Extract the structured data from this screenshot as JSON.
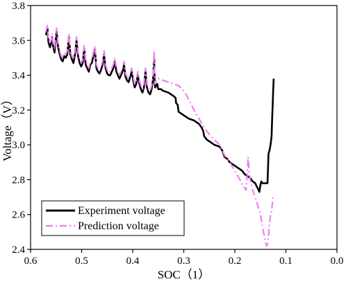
{
  "chart_data": {
    "type": "line",
    "xlabel": "SOC（1）",
    "ylabel": "Voltage（V）",
    "xlim": [
      0.6,
      0.0
    ],
    "ylim": [
      2.4,
      3.8
    ],
    "x_reversed": true,
    "x_ticks": [
      "0.6",
      "0.5",
      "0.4",
      "0.3",
      "0.2",
      "0.1",
      "0.0"
    ],
    "y_ticks": [
      "2.4",
      "2.6",
      "2.8",
      "3.0",
      "3.2",
      "3.4",
      "3.6",
      "3.8"
    ],
    "legend_position": "bottom-left",
    "series": [
      {
        "name": "Experiment voltage",
        "color": "#000000",
        "style": "solid",
        "x": [
          0.57,
          0.567,
          0.565,
          0.562,
          0.56,
          0.558,
          0.556,
          0.553,
          0.551,
          0.549,
          0.546,
          0.543,
          0.54,
          0.537,
          0.534,
          0.531,
          0.528,
          0.525,
          0.522,
          0.519,
          0.516,
          0.513,
          0.51,
          0.507,
          0.504,
          0.501,
          0.498,
          0.495,
          0.492,
          0.489,
          0.486,
          0.483,
          0.48,
          0.477,
          0.474,
          0.471,
          0.468,
          0.465,
          0.462,
          0.459,
          0.456,
          0.453,
          0.45,
          0.447,
          0.444,
          0.441,
          0.438,
          0.435,
          0.432,
          0.429,
          0.426,
          0.423,
          0.42,
          0.417,
          0.414,
          0.411,
          0.408,
          0.405,
          0.402,
          0.399,
          0.396,
          0.393,
          0.39,
          0.387,
          0.384,
          0.381,
          0.378,
          0.375,
          0.372,
          0.369,
          0.366,
          0.363,
          0.36,
          0.358,
          0.357,
          0.356,
          0.354,
          0.352,
          0.35,
          0.345,
          0.34,
          0.33,
          0.32,
          0.316,
          0.315,
          0.312,
          0.31,
          0.3,
          0.29,
          0.28,
          0.275,
          0.27,
          0.265,
          0.262,
          0.26,
          0.255,
          0.25,
          0.24,
          0.23,
          0.225,
          0.22,
          0.215,
          0.21,
          0.2,
          0.19,
          0.185,
          0.183,
          0.18,
          0.175,
          0.17,
          0.165,
          0.16,
          0.157,
          0.155,
          0.152,
          0.15,
          0.148,
          0.146,
          0.144,
          0.142,
          0.14,
          0.136,
          0.134,
          0.132,
          0.13,
          0.128,
          0.127,
          0.126,
          0.125,
          0.124
        ],
        "y": [
          3.63,
          3.67,
          3.59,
          3.56,
          3.58,
          3.62,
          3.57,
          3.53,
          3.6,
          3.65,
          3.56,
          3.52,
          3.49,
          3.48,
          3.51,
          3.5,
          3.52,
          3.62,
          3.52,
          3.49,
          3.47,
          3.52,
          3.6,
          3.51,
          3.47,
          3.45,
          3.47,
          3.55,
          3.46,
          3.44,
          3.42,
          3.46,
          3.47,
          3.51,
          3.55,
          3.44,
          3.42,
          3.41,
          3.43,
          3.46,
          3.52,
          3.44,
          3.41,
          3.4,
          3.4,
          3.42,
          3.44,
          3.48,
          3.42,
          3.4,
          3.38,
          3.4,
          3.42,
          3.46,
          3.39,
          3.37,
          3.36,
          3.39,
          3.42,
          3.37,
          3.33,
          3.35,
          3.4,
          3.35,
          3.32,
          3.3,
          3.33,
          3.42,
          3.33,
          3.3,
          3.29,
          3.32,
          3.38,
          3.5,
          3.36,
          3.33,
          3.34,
          3.35,
          3.32,
          3.32,
          3.31,
          3.3,
          3.28,
          3.27,
          3.24,
          3.23,
          3.19,
          3.17,
          3.15,
          3.14,
          3.13,
          3.12,
          3.1,
          3.08,
          3.05,
          3.03,
          3.02,
          3.0,
          2.99,
          2.97,
          2.93,
          2.92,
          2.9,
          2.88,
          2.86,
          2.85,
          2.84,
          2.83,
          2.82,
          2.81,
          2.79,
          2.78,
          2.76,
          2.75,
          2.73,
          2.77,
          2.79,
          2.78,
          2.78,
          2.78,
          2.78,
          2.78,
          2.95,
          2.97,
          3.0,
          3.05,
          3.15,
          3.22,
          3.3,
          3.38
        ]
      },
      {
        "name": "Prediction voltage",
        "color": "#ee82ee",
        "style": "dash-dot",
        "x": [
          0.57,
          0.567,
          0.565,
          0.562,
          0.56,
          0.558,
          0.556,
          0.553,
          0.551,
          0.549,
          0.546,
          0.543,
          0.54,
          0.537,
          0.534,
          0.531,
          0.528,
          0.525,
          0.522,
          0.519,
          0.516,
          0.513,
          0.51,
          0.507,
          0.504,
          0.501,
          0.498,
          0.495,
          0.492,
          0.489,
          0.486,
          0.483,
          0.48,
          0.477,
          0.474,
          0.471,
          0.468,
          0.465,
          0.462,
          0.459,
          0.456,
          0.453,
          0.45,
          0.447,
          0.444,
          0.441,
          0.438,
          0.435,
          0.432,
          0.429,
          0.426,
          0.423,
          0.42,
          0.417,
          0.414,
          0.411,
          0.408,
          0.405,
          0.402,
          0.399,
          0.396,
          0.393,
          0.39,
          0.387,
          0.384,
          0.381,
          0.378,
          0.375,
          0.372,
          0.369,
          0.366,
          0.363,
          0.36,
          0.358,
          0.357,
          0.356,
          0.354,
          0.352,
          0.35,
          0.34,
          0.33,
          0.32,
          0.31,
          0.3,
          0.29,
          0.28,
          0.27,
          0.26,
          0.25,
          0.24,
          0.23,
          0.22,
          0.21,
          0.2,
          0.19,
          0.185,
          0.18,
          0.178,
          0.176,
          0.174,
          0.172,
          0.17,
          0.168,
          0.165,
          0.16,
          0.155,
          0.15,
          0.145,
          0.14,
          0.138,
          0.136,
          0.134,
          0.132,
          0.13,
          0.128,
          0.127,
          0.126,
          0.125
        ],
        "y": [
          3.65,
          3.69,
          3.61,
          3.58,
          3.6,
          3.64,
          3.59,
          3.55,
          3.62,
          3.67,
          3.58,
          3.54,
          3.51,
          3.5,
          3.53,
          3.52,
          3.54,
          3.64,
          3.54,
          3.51,
          3.49,
          3.54,
          3.62,
          3.53,
          3.49,
          3.47,
          3.49,
          3.57,
          3.48,
          3.46,
          3.44,
          3.48,
          3.49,
          3.53,
          3.57,
          3.46,
          3.44,
          3.43,
          3.45,
          3.48,
          3.54,
          3.46,
          3.43,
          3.42,
          3.42,
          3.44,
          3.46,
          3.5,
          3.44,
          3.42,
          3.4,
          3.42,
          3.44,
          3.48,
          3.41,
          3.39,
          3.38,
          3.41,
          3.44,
          3.39,
          3.35,
          3.37,
          3.42,
          3.37,
          3.34,
          3.32,
          3.35,
          3.44,
          3.35,
          3.32,
          3.31,
          3.34,
          3.4,
          3.54,
          3.38,
          3.35,
          3.37,
          3.38,
          3.38,
          3.37,
          3.36,
          3.35,
          3.34,
          3.31,
          3.26,
          3.2,
          3.15,
          3.1,
          3.06,
          3.03,
          3.0,
          2.94,
          2.9,
          2.85,
          2.8,
          2.77,
          2.75,
          2.74,
          2.82,
          2.93,
          2.85,
          2.8,
          2.78,
          2.74,
          2.7,
          2.65,
          2.6,
          2.52,
          2.44,
          2.42,
          2.43,
          2.48,
          2.55,
          2.6,
          2.62,
          2.65,
          2.69,
          2.71
        ]
      }
    ]
  }
}
